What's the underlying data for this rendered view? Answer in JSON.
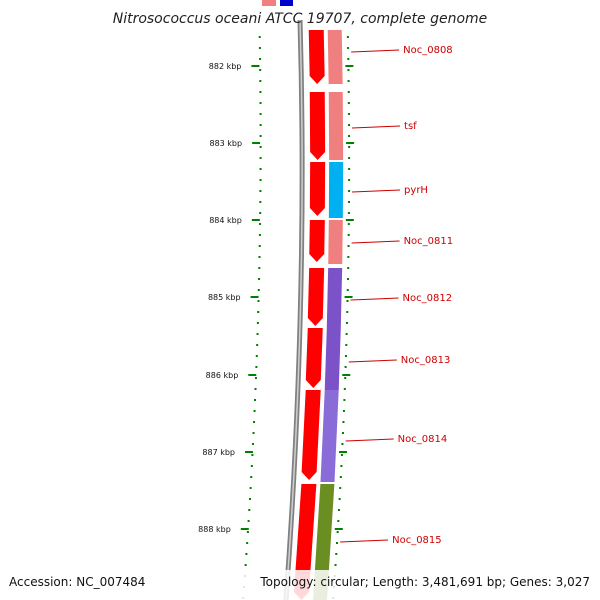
{
  "title": "Nitrosococcus oceani ATCC 19707, complete genome",
  "accession": "Accession: NC_007484",
  "topology": "Topology: circular; Length: 3,481,691 bp; Genes: 3,027",
  "scale_labels": [
    "882 kbp",
    "883 kbp",
    "884 kbp",
    "885 kbp",
    "886 kbp",
    "887 kbp",
    "888 kbp"
  ],
  "genes": [
    {
      "name": "Noc_0808",
      "color": "#f08080"
    },
    {
      "name": "tsf",
      "color": "#f08080"
    },
    {
      "name": "pyrH",
      "color": "#00b0f0"
    },
    {
      "name": "Noc_0811",
      "color": "#f08080"
    },
    {
      "name": "Noc_0812",
      "color": "#7b52c8"
    },
    {
      "name": "Noc_0813",
      "color": "#7b52c8"
    },
    {
      "name": "Noc_0814",
      "color": "#8a6cd8"
    },
    {
      "name": "Noc_0815",
      "color": "#6b8e23"
    }
  ],
  "colors": {
    "forward_strand": "#ff0000",
    "backbone": "#808080",
    "tick": "#008000",
    "label_line": "#cc0000"
  }
}
